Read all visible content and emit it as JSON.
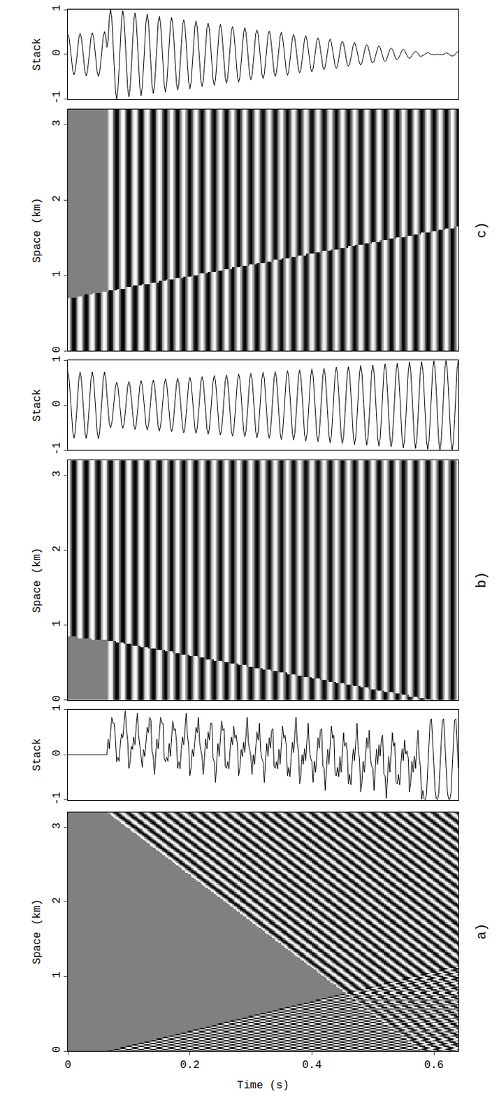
{
  "chart_data": [
    {
      "type": "line",
      "ylabel": "Stack",
      "color": "#000000",
      "xlim": [
        0,
        0.64
      ],
      "xticks": [
        0,
        0.2,
        0.4,
        0.6
      ],
      "ylim": [
        -1,
        1
      ],
      "yticks": [
        -1,
        0,
        1
      ],
      "tick_labels": "y"
    },
    {
      "type": "heatmap",
      "ylabel": "Space (km)",
      "annotation": "c)",
      "xlim": [
        0,
        0.64
      ],
      "xticks": [
        0,
        0.2,
        0.4,
        0.6
      ],
      "ylim": [
        0,
        3.2
      ],
      "yticks": [
        0,
        1,
        2,
        3
      ],
      "zlim": [
        -1,
        1
      ],
      "tick_labels": "y",
      "events": [
        {
          "t_start": 0,
          "p": 0,
          "frequency": 50,
          "phase": 0,
          "onset": [
            [
              0,
              0.7
            ],
            [
              0.64,
              1.65
            ]
          ],
          "side": "below"
        },
        {
          "t_start": 0.065,
          "p": 0,
          "frequency": 50,
          "phase": 180,
          "onset": [
            [
              0,
              0.7
            ],
            [
              0.64,
              1.65
            ]
          ],
          "side": "above"
        }
      ]
    },
    {
      "type": "line",
      "ylabel": "Stack",
      "color": "#000000",
      "xlim": [
        0,
        0.64
      ],
      "xticks": [
        0,
        0.2,
        0.4,
        0.6
      ],
      "ylim": [
        -1,
        1
      ],
      "yticks": [
        -1,
        0,
        1
      ],
      "tick_labels": "y"
    },
    {
      "type": "heatmap",
      "ylabel": "Space (km)",
      "annotation": "b)",
      "xlim": [
        0,
        0.64
      ],
      "xticks": [
        0,
        0.2,
        0.4,
        0.6
      ],
      "ylim": [
        0,
        3.2
      ],
      "yticks": [
        0,
        1,
        2,
        3
      ],
      "zlim": [
        -1,
        1
      ],
      "tick_labels": "y",
      "events": [
        {
          "t_start": 0,
          "p": 0,
          "frequency": 50,
          "phase": 0,
          "onset": [
            [
              0,
              0.85
            ],
            [
              0.065,
              0.8
            ],
            [
              0.6,
              0
            ]
          ],
          "side": "above"
        },
        {
          "t_start": 0.065,
          "p": 0,
          "frequency": 50,
          "phase": 180,
          "onset": [
            [
              0,
              0.85
            ],
            [
              0.065,
              0.8
            ],
            [
              0.6,
              0
            ]
          ],
          "side": "below"
        }
      ]
    },
    {
      "type": "line",
      "ylabel": "Stack",
      "color": "#000000",
      "xlim": [
        0,
        0.64
      ],
      "xticks": [
        0,
        0.2,
        0.4,
        0.6
      ],
      "ylim": [
        -1,
        1
      ],
      "yticks": [
        -1,
        0,
        1
      ],
      "tick_labels": "y"
    },
    {
      "type": "heatmap",
      "ylabel": "Space (km)",
      "xlabel": "Time (s)",
      "annotation": "a)",
      "xlim": [
        0,
        0.64
      ],
      "xticks": [
        0,
        0.2,
        0.4,
        0.6
      ],
      "ylim": [
        0,
        3.2
      ],
      "yticks": [
        0,
        1,
        2,
        3
      ],
      "zlim": [
        -1,
        1
      ],
      "events": [
        {
          "t_start": 0,
          "p": 0.5,
          "frequency": 50,
          "phase": 0,
          "onset": [
            [
              0.065,
              0
            ],
            [
              0.64,
              1.15
            ]
          ],
          "side": "below"
        },
        {
          "t_start": 0,
          "p": -0.16,
          "frequency": 50,
          "phase": 0,
          "onset": [
            [
              0.065,
              3.2
            ],
            [
              0.58,
              0
            ]
          ],
          "side": "above"
        }
      ]
    }
  ]
}
